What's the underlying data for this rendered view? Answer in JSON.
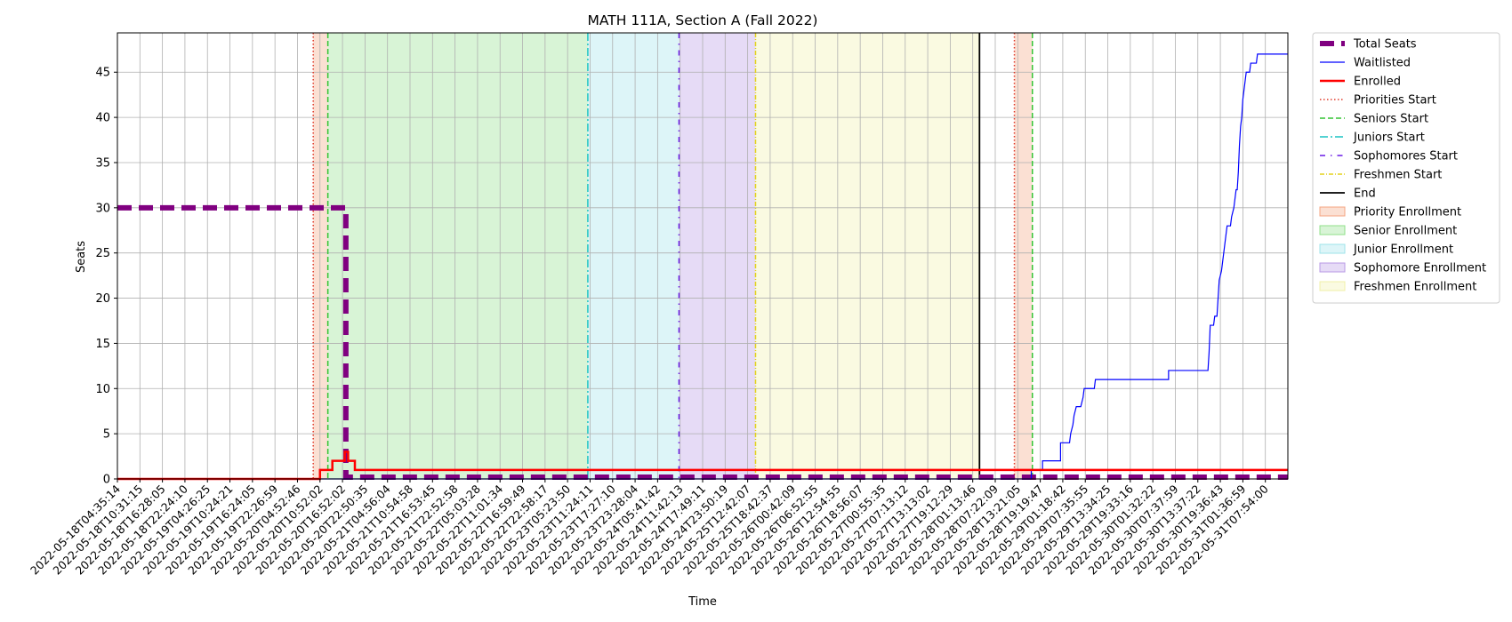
{
  "chart_data": {
    "type": "line",
    "title": "MATH 111A, Section A (Fall 2022)",
    "xlabel": "Time",
    "ylabel": "Seats",
    "xlim": [
      0,
      52
    ],
    "ylim": [
      0,
      49.35
    ],
    "grid": true,
    "legend_position": "right-outside",
    "y_ticks": [
      0,
      5,
      10,
      15,
      20,
      25,
      30,
      35,
      40,
      45
    ],
    "x_ticks": [
      "2022-05-18T04:35:14",
      "2022-05-18T10:31:15",
      "2022-05-18T16:28:05",
      "2022-05-18T22:24:10",
      "2022-05-19T04:26:25",
      "2022-05-19T10:24:21",
      "2022-05-19T16:24:05",
      "2022-05-19T22:26:59",
      "2022-05-20T04:52:46",
      "2022-05-20T10:52:02",
      "2022-05-20T16:52:02",
      "2022-05-20T22:50:35",
      "2022-05-21T04:56:04",
      "2022-05-21T10:54:58",
      "2022-05-21T16:53:45",
      "2022-05-21T22:52:58",
      "2022-05-22T05:03:28",
      "2022-05-22T11:01:34",
      "2022-05-22T16:59:49",
      "2022-05-22T22:58:17",
      "2022-05-23T05:23:50",
      "2022-05-23T11:24:11",
      "2022-05-23T17:27:10",
      "2022-05-23T23:28:04",
      "2022-05-24T05:41:42",
      "2022-05-24T11:42:13",
      "2022-05-24T17:49:11",
      "2022-05-24T23:50:19",
      "2022-05-25T12:42:07",
      "2022-05-25T18:42:37",
      "2022-05-26T00:42:09",
      "2022-05-26T06:52:55",
      "2022-05-26T12:54:55",
      "2022-05-26T18:56:07",
      "2022-05-27T00:55:35",
      "2022-05-27T07:13:12",
      "2022-05-27T13:13:02",
      "2022-05-27T19:12:29",
      "2022-05-28T01:13:46",
      "2022-05-28T07:22:09",
      "2022-05-28T13:21:05",
      "2022-05-28T19:19:47",
      "2022-05-29T01:18:42",
      "2022-05-29T07:35:55",
      "2022-05-29T13:34:25",
      "2022-05-29T19:33:16",
      "2022-05-30T01:32:22",
      "2022-05-30T07:37:59",
      "2022-05-30T13:37:22",
      "2022-05-30T19:36:43",
      "2022-05-31T01:36:59",
      "2022-05-31T07:54:00"
    ],
    "phases": [
      {
        "name": "Priority Enrollment",
        "start": 8.7,
        "end": 9.35,
        "color": "#f4a582"
      },
      {
        "name": "Senior Enrollment",
        "start": 9.35,
        "end": 20.9,
        "color": "#90e08a"
      },
      {
        "name": "Junior Enrollment",
        "start": 20.9,
        "end": 24.95,
        "color": "#9ee3ea"
      },
      {
        "name": "Sophomore Enrollment",
        "start": 24.95,
        "end": 28.35,
        "color": "#b899e6"
      },
      {
        "name": "Freshmen Enrollment",
        "start": 28.35,
        "end": 38.3,
        "color": "#f0f0a8"
      },
      {
        "name": "Priority Enrollment",
        "start": 39.85,
        "end": 40.65,
        "color": "#f4a582"
      }
    ],
    "markers": [
      {
        "name": "Priorities Start",
        "x": 8.7,
        "color": "#e03a2a",
        "dash": "1.5,2.5"
      },
      {
        "name": "Seniors Start",
        "x": 9.35,
        "color": "#33c433",
        "dash": "6,3"
      },
      {
        "name": "Juniors Start",
        "x": 20.9,
        "color": "#1cc4c4",
        "dash": "9,3,2,3"
      },
      {
        "name": "Sophomores Start",
        "x": 24.95,
        "color": "#6a1ae6",
        "dash": "6,6,1.5,6"
      },
      {
        "name": "Freshmen Start",
        "x": 28.35,
        "color": "#e3d21a",
        "dash": "5,2,1,2"
      },
      {
        "name": "End",
        "x": 38.3,
        "color": "#000000",
        "dash": ""
      },
      {
        "name": "Priorities Start",
        "x": 39.85,
        "color": "#e03a2a",
        "dash": "1.5,2.5"
      },
      {
        "name": "Seniors Start",
        "x": 40.65,
        "color": "#33c433",
        "dash": "6,3"
      }
    ],
    "series": [
      {
        "name": "Total Seats",
        "color": "#800080",
        "style": "dashed-thick",
        "points": [
          [
            0,
            30
          ],
          [
            10.15,
            30
          ],
          [
            10.15,
            0.2
          ],
          [
            52,
            0.2
          ]
        ]
      },
      {
        "name": "Waitlisted",
        "color": "#0000ff",
        "style": "solid-thin",
        "points": [
          [
            0,
            0
          ],
          [
            40.6,
            0
          ],
          [
            40.6,
            1
          ],
          [
            41.1,
            1
          ],
          [
            41.1,
            2
          ],
          [
            41.9,
            2
          ],
          [
            41.9,
            4
          ],
          [
            42.3,
            4
          ],
          [
            42.35,
            5
          ],
          [
            42.45,
            6
          ],
          [
            42.5,
            7
          ],
          [
            42.6,
            8
          ],
          [
            42.8,
            8
          ],
          [
            42.9,
            9
          ],
          [
            42.95,
            10
          ],
          [
            43.4,
            10
          ],
          [
            43.45,
            11
          ],
          [
            46.7,
            11
          ],
          [
            46.7,
            12
          ],
          [
            48.45,
            12
          ],
          [
            48.5,
            14
          ],
          [
            48.55,
            17
          ],
          [
            48.7,
            17
          ],
          [
            48.75,
            18
          ],
          [
            48.85,
            18
          ],
          [
            48.9,
            20
          ],
          [
            48.95,
            22
          ],
          [
            49.05,
            23
          ],
          [
            49.15,
            25
          ],
          [
            49.25,
            27
          ],
          [
            49.3,
            28
          ],
          [
            49.45,
            28
          ],
          [
            49.5,
            29
          ],
          [
            49.6,
            30
          ],
          [
            49.65,
            31
          ],
          [
            49.7,
            32
          ],
          [
            49.75,
            32
          ],
          [
            49.8,
            34
          ],
          [
            49.85,
            37
          ],
          [
            49.9,
            39
          ],
          [
            49.95,
            40
          ],
          [
            50.0,
            42
          ],
          [
            50.05,
            43
          ],
          [
            50.1,
            44
          ],
          [
            50.15,
            45
          ],
          [
            50.3,
            45
          ],
          [
            50.35,
            46
          ],
          [
            50.6,
            46
          ],
          [
            50.65,
            47
          ],
          [
            52,
            47
          ]
        ]
      },
      {
        "name": "Enrolled",
        "color": "#ff0000",
        "style": "solid-thick",
        "points": [
          [
            0,
            0
          ],
          [
            9.0,
            0
          ],
          [
            9.0,
            1
          ],
          [
            9.55,
            1
          ],
          [
            9.55,
            2
          ],
          [
            10.1,
            2
          ],
          [
            10.1,
            3
          ],
          [
            10.25,
            3
          ],
          [
            10.25,
            2
          ],
          [
            10.55,
            2
          ],
          [
            10.55,
            1
          ],
          [
            52,
            1
          ]
        ]
      }
    ],
    "legend": [
      {
        "label": "Total Seats",
        "kind": "line",
        "color": "#800080",
        "style": "dashed-thick"
      },
      {
        "label": "Waitlisted",
        "kind": "line",
        "color": "#0000ff",
        "style": "solid-thin"
      },
      {
        "label": "Enrolled",
        "kind": "line",
        "color": "#ff0000",
        "style": "solid-thick"
      },
      {
        "label": "Priorities Start",
        "kind": "line",
        "color": "#e03a2a",
        "style": "dotted"
      },
      {
        "label": "Seniors Start",
        "kind": "line",
        "color": "#33c433",
        "style": "dashed"
      },
      {
        "label": "Juniors Start",
        "kind": "line",
        "color": "#1cc4c4",
        "style": "dashdot"
      },
      {
        "label": "Sophomores Start",
        "kind": "line",
        "color": "#6a1ae6",
        "style": "loosedashdot"
      },
      {
        "label": "Freshmen Start",
        "kind": "line",
        "color": "#e3d21a",
        "style": "dashdot-small"
      },
      {
        "label": "End",
        "kind": "line",
        "color": "#000000",
        "style": "solid"
      },
      {
        "label": "Priority Enrollment",
        "kind": "patch",
        "color": "#f4a582"
      },
      {
        "label": "Senior Enrollment",
        "kind": "patch",
        "color": "#90e08a"
      },
      {
        "label": "Junior Enrollment",
        "kind": "patch",
        "color": "#9ee3ea"
      },
      {
        "label": "Sophomore Enrollment",
        "kind": "patch",
        "color": "#b899e6"
      },
      {
        "label": "Freshmen Enrollment",
        "kind": "patch",
        "color": "#f0f0a8"
      }
    ]
  }
}
